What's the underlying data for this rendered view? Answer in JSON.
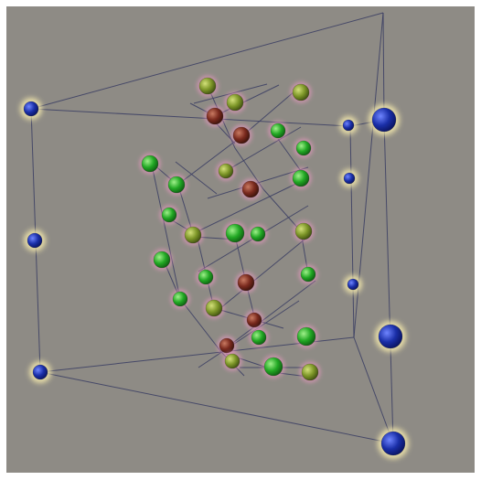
{
  "scene": {
    "subject": "crystal-lattice-3d-view",
    "colors": {
      "background": "#8e8b85",
      "edge": "#3a3d63",
      "blue_atom": "#1a2fa8",
      "blue_glow": "#fff3b0",
      "green_atom": "#22a824",
      "olive_atom": "#7d9628",
      "red_atom": "#7a2a1e",
      "pink_glow": "#ff9ccf"
    }
  }
}
